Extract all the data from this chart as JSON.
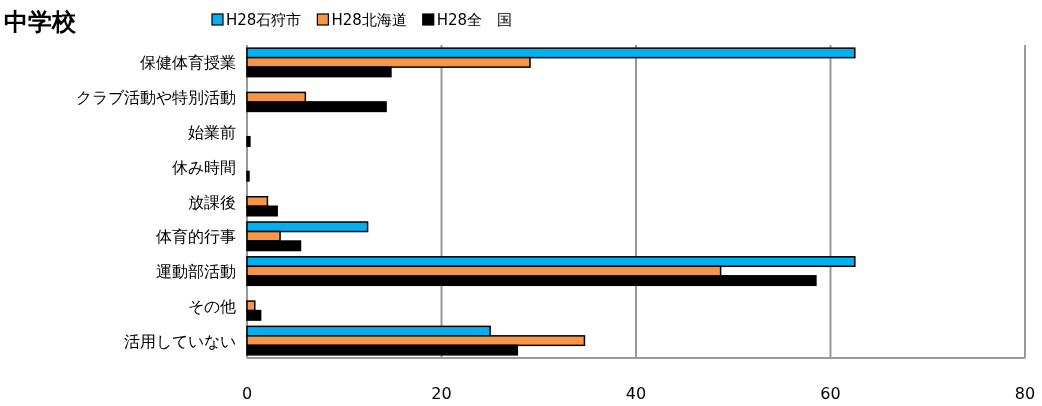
{
  "chart_data": {
    "type": "bar",
    "orientation": "horizontal",
    "title": "中学校",
    "categories": [
      "保健体育授業",
      "クラブ活動や特別活動",
      "始業前",
      "休み時間",
      "放課後",
      "体育的行事",
      "運動部活動",
      "その他",
      "活用していない"
    ],
    "series": [
      {
        "name": "H28石狩市",
        "color": "#00b0f0",
        "values": [
          62.5,
          0,
          0,
          0,
          0,
          12.4,
          62.5,
          0,
          25.0
        ]
      },
      {
        "name": "H28北海道",
        "color": "#f79646",
        "values": [
          29.1,
          6.0,
          0,
          0,
          2.1,
          3.4,
          48.7,
          0.8,
          34.7
        ]
      },
      {
        "name": "H28全　国",
        "color": "#000000",
        "values": [
          14.8,
          14.3,
          0.3,
          0.2,
          3.1,
          5.5,
          58.5,
          1.4,
          27.8
        ]
      }
    ],
    "xlim": [
      0,
      80
    ],
    "xticks": [
      0,
      20,
      40,
      60,
      80
    ],
    "grid": "x",
    "legend": "top"
  }
}
